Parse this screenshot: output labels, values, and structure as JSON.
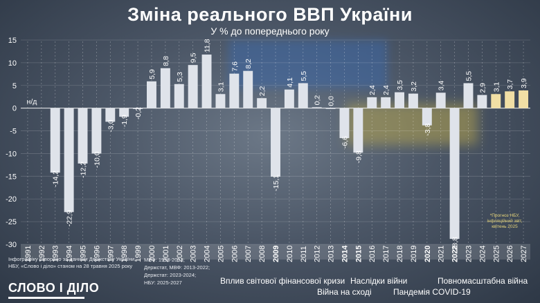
{
  "title": "Зміна реального ВВП України",
  "subtitle": "У % до попереднього року",
  "chart_data": {
    "type": "bar",
    "categories": [
      "1991",
      "1992",
      "1993",
      "1994",
      "1995",
      "1996",
      "1997",
      "1998",
      "1999",
      "2000",
      "2001",
      "2002",
      "2003",
      "2004",
      "2005",
      "2006",
      "2007",
      "2008",
      "2009",
      "2010",
      "2011",
      "2012",
      "2013",
      "2014",
      "2015",
      "2016",
      "2017",
      "2018",
      "2019",
      "2020",
      "2021",
      "2022",
      "2023",
      "2024",
      "2025",
      "2026",
      "2027"
    ],
    "values": [
      null,
      null,
      -14.2,
      -22.9,
      -12.2,
      -10.0,
      -3.0,
      -1.9,
      -0.2,
      5.9,
      8.8,
      5.3,
      9.5,
      11.8,
      3.1,
      7.6,
      8.2,
      2.2,
      -15.1,
      4.1,
      5.5,
      0.2,
      0.0,
      -6.6,
      -9.8,
      2.4,
      2.4,
      3.5,
      3.2,
      -3.8,
      3.4,
      -28.8,
      5.5,
      2.9,
      3.1,
      3.7,
      3.9
    ],
    "labels": [
      "н/д",
      "",
      "-14,2",
      "-22,9",
      "-12,2",
      "-10,0",
      "-3,0",
      "-1,9",
      "-0,2",
      "5,9",
      "8,8",
      "5,3",
      "9,5",
      "11,8",
      "3,1",
      "7,6",
      "8,2",
      "2,2",
      "-15,1",
      "4,1",
      "5,5",
      "0,2",
      "0,0",
      "-6,6",
      "-9,8",
      "2,4",
      "2,4",
      "3,5",
      "3,2",
      "-3,8",
      "3,4",
      "-28,8",
      "5,5",
      "2,9",
      "3,1",
      "3,7",
      "3,9"
    ],
    "forecast_categories": [
      "2025",
      "2026",
      "2027"
    ],
    "highlight_categories": [
      "2009",
      "2014",
      "2015",
      "2020",
      "2022"
    ],
    "ylim": [
      -30,
      15
    ],
    "yticks": [
      15,
      10,
      5,
      0,
      -5,
      -10,
      -15,
      -20,
      -25,
      -30
    ],
    "colors": {
      "bar": "#dfe3ea",
      "forecast": "#f1dfa5"
    }
  },
  "periods": [
    {
      "label": "Вплив світової фінансової кризи"
    },
    {
      "label": "Наслідки війни"
    },
    {
      "label": "Війна на сході"
    },
    {
      "label": "Пандемія COVID-19"
    },
    {
      "label": "Повномасштабна війна"
    }
  ],
  "forecast_note": "*Прогноз НБУ, інфляційний звіт, квітень 2025",
  "footer": {
    "credit_1": "Інфографіку створено за даними Держстату України,",
    "credit_2": "НБУ, «Слово і діло» станом на 28 травня 2025 року",
    "sources_1": "МВФ: 1993-2013;",
    "sources_2": "Держстат, МВФ: 2013-2022;",
    "sources_3": "Держстат: 2023-2024;",
    "sources_4": "НБУ: 2025-2027",
    "logo": "СЛОВО І ДІЛО"
  }
}
